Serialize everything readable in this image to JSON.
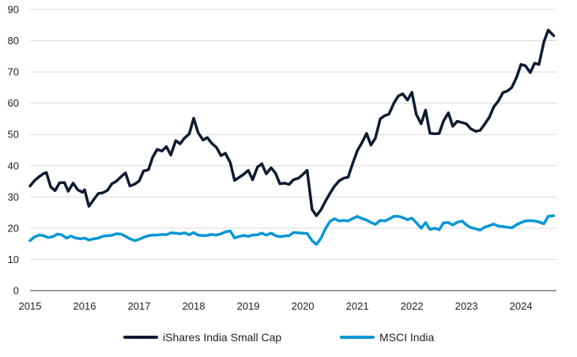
{
  "chart_data": {
    "type": "line",
    "title": "",
    "xlabel": "",
    "ylabel": "",
    "xlim": [
      2015,
      2024.65
    ],
    "ylim": [
      0,
      90
    ],
    "yticks": [
      0,
      10,
      20,
      30,
      40,
      50,
      60,
      70,
      80,
      90
    ],
    "xticks": [
      "2015",
      "2016",
      "2017",
      "2018",
      "2019",
      "2020",
      "2021",
      "2022",
      "2023",
      "2024"
    ],
    "grid": "horizontal",
    "legend": "bottom",
    "series": [
      {
        "name": "iShares India Small Cap",
        "color": "#0d1b33",
        "points": [
          [
            2015.0,
            33.5
          ],
          [
            2015.08,
            35.2
          ],
          [
            2015.17,
            36.5
          ],
          [
            2015.25,
            37.5
          ],
          [
            2015.3,
            37.8
          ],
          [
            2015.38,
            33.2
          ],
          [
            2015.46,
            32.0
          ],
          [
            2015.54,
            34.5
          ],
          [
            2015.63,
            34.6
          ],
          [
            2015.7,
            31.8
          ],
          [
            2015.79,
            34.4
          ],
          [
            2015.88,
            32.2
          ],
          [
            2015.96,
            31.5
          ],
          [
            2016.0,
            32.3
          ],
          [
            2016.08,
            27.0
          ],
          [
            2016.17,
            29.2
          ],
          [
            2016.25,
            31.1
          ],
          [
            2016.33,
            31.3
          ],
          [
            2016.42,
            32.1
          ],
          [
            2016.5,
            34.2
          ],
          [
            2016.58,
            35.0
          ],
          [
            2016.67,
            36.5
          ],
          [
            2016.75,
            37.7
          ],
          [
            2016.83,
            33.5
          ],
          [
            2016.92,
            34.1
          ],
          [
            2017.0,
            35.1
          ],
          [
            2017.08,
            38.3
          ],
          [
            2017.17,
            38.7
          ],
          [
            2017.25,
            42.8
          ],
          [
            2017.33,
            45.2
          ],
          [
            2017.42,
            44.7
          ],
          [
            2017.5,
            46.1
          ],
          [
            2017.58,
            43.4
          ],
          [
            2017.67,
            48.0
          ],
          [
            2017.75,
            47.0
          ],
          [
            2017.83,
            48.8
          ],
          [
            2017.92,
            50.2
          ],
          [
            2018.0,
            55.2
          ],
          [
            2018.08,
            50.6
          ],
          [
            2018.17,
            48.2
          ],
          [
            2018.25,
            49.0
          ],
          [
            2018.33,
            47.2
          ],
          [
            2018.42,
            45.8
          ],
          [
            2018.5,
            43.2
          ],
          [
            2018.58,
            44.0
          ],
          [
            2018.67,
            41.0
          ],
          [
            2018.75,
            35.3
          ],
          [
            2018.83,
            36.2
          ],
          [
            2018.92,
            37.3
          ],
          [
            2019.0,
            38.5
          ],
          [
            2019.08,
            35.5
          ],
          [
            2019.17,
            39.6
          ],
          [
            2019.25,
            40.6
          ],
          [
            2019.33,
            37.4
          ],
          [
            2019.42,
            39.3
          ],
          [
            2019.5,
            37.6
          ],
          [
            2019.58,
            34.2
          ],
          [
            2019.67,
            34.4
          ],
          [
            2019.75,
            34.0
          ],
          [
            2019.83,
            35.5
          ],
          [
            2019.92,
            36.0
          ],
          [
            2020.0,
            37.2
          ],
          [
            2020.08,
            38.5
          ],
          [
            2020.17,
            26.0
          ],
          [
            2020.25,
            24.0
          ],
          [
            2020.33,
            25.8
          ],
          [
            2020.42,
            28.8
          ],
          [
            2020.5,
            31.2
          ],
          [
            2020.58,
            33.4
          ],
          [
            2020.67,
            35.2
          ],
          [
            2020.75,
            36.0
          ],
          [
            2020.83,
            36.3
          ],
          [
            2020.92,
            41.0
          ],
          [
            2021.0,
            44.8
          ],
          [
            2021.08,
            47.2
          ],
          [
            2021.17,
            50.3
          ],
          [
            2021.25,
            46.6
          ],
          [
            2021.33,
            48.8
          ],
          [
            2021.42,
            55.0
          ],
          [
            2021.5,
            56.0
          ],
          [
            2021.58,
            56.5
          ],
          [
            2021.67,
            60.0
          ],
          [
            2021.75,
            62.3
          ],
          [
            2021.83,
            63.0
          ],
          [
            2021.92,
            61.0
          ],
          [
            2022.0,
            63.5
          ],
          [
            2022.08,
            56.5
          ],
          [
            2022.17,
            53.4
          ],
          [
            2022.25,
            57.8
          ],
          [
            2022.33,
            50.4
          ],
          [
            2022.42,
            50.2
          ],
          [
            2022.5,
            50.3
          ],
          [
            2022.58,
            54.3
          ],
          [
            2022.67,
            56.9
          ],
          [
            2022.75,
            52.6
          ],
          [
            2022.83,
            54.2
          ],
          [
            2022.92,
            53.8
          ],
          [
            2023.0,
            53.4
          ],
          [
            2023.08,
            51.8
          ],
          [
            2023.17,
            51.0
          ],
          [
            2023.25,
            51.3
          ],
          [
            2023.33,
            53.2
          ],
          [
            2023.42,
            55.5
          ],
          [
            2023.5,
            58.8
          ],
          [
            2023.58,
            60.6
          ],
          [
            2023.67,
            63.4
          ],
          [
            2023.75,
            63.9
          ],
          [
            2023.83,
            65.0
          ],
          [
            2023.92,
            68.3
          ],
          [
            2024.0,
            72.4
          ],
          [
            2024.08,
            72.0
          ],
          [
            2024.17,
            69.8
          ],
          [
            2024.25,
            72.8
          ],
          [
            2024.33,
            72.4
          ],
          [
            2024.42,
            79.6
          ],
          [
            2024.5,
            83.4
          ],
          [
            2024.6,
            81.6
          ]
        ]
      },
      {
        "name": "MSCI India",
        "color": "#0796d8",
        "points": [
          [
            2015.0,
            16.0
          ],
          [
            2015.08,
            17.2
          ],
          [
            2015.17,
            17.8
          ],
          [
            2015.25,
            17.6
          ],
          [
            2015.33,
            17.0
          ],
          [
            2015.42,
            17.3
          ],
          [
            2015.5,
            18.1
          ],
          [
            2015.58,
            17.9
          ],
          [
            2015.67,
            16.8
          ],
          [
            2015.75,
            17.5
          ],
          [
            2015.83,
            16.9
          ],
          [
            2015.92,
            16.6
          ],
          [
            2016.0,
            16.8
          ],
          [
            2016.08,
            16.2
          ],
          [
            2016.17,
            16.6
          ],
          [
            2016.25,
            16.8
          ],
          [
            2016.33,
            17.4
          ],
          [
            2016.42,
            17.6
          ],
          [
            2016.5,
            17.7
          ],
          [
            2016.58,
            18.2
          ],
          [
            2016.67,
            18.1
          ],
          [
            2016.75,
            17.4
          ],
          [
            2016.83,
            16.6
          ],
          [
            2016.92,
            16.0
          ],
          [
            2017.0,
            16.4
          ],
          [
            2017.08,
            17.1
          ],
          [
            2017.17,
            17.6
          ],
          [
            2017.25,
            17.8
          ],
          [
            2017.33,
            17.8
          ],
          [
            2017.42,
            18.0
          ],
          [
            2017.5,
            17.9
          ],
          [
            2017.58,
            18.5
          ],
          [
            2017.67,
            18.4
          ],
          [
            2017.75,
            18.2
          ],
          [
            2017.83,
            18.5
          ],
          [
            2017.92,
            17.9
          ],
          [
            2018.0,
            18.6
          ],
          [
            2018.08,
            17.8
          ],
          [
            2018.17,
            17.6
          ],
          [
            2018.25,
            17.7
          ],
          [
            2018.33,
            18.0
          ],
          [
            2018.42,
            17.8
          ],
          [
            2018.5,
            18.2
          ],
          [
            2018.58,
            18.8
          ],
          [
            2018.67,
            19.1
          ],
          [
            2018.75,
            16.9
          ],
          [
            2018.83,
            17.3
          ],
          [
            2018.92,
            17.7
          ],
          [
            2019.0,
            17.4
          ],
          [
            2019.08,
            17.8
          ],
          [
            2019.17,
            17.9
          ],
          [
            2019.25,
            18.4
          ],
          [
            2019.33,
            17.8
          ],
          [
            2019.42,
            18.4
          ],
          [
            2019.5,
            17.6
          ],
          [
            2019.58,
            17.3
          ],
          [
            2019.67,
            17.5
          ],
          [
            2019.75,
            17.6
          ],
          [
            2019.83,
            18.6
          ],
          [
            2019.92,
            18.5
          ],
          [
            2020.0,
            18.4
          ],
          [
            2020.08,
            18.3
          ],
          [
            2020.17,
            16.0
          ],
          [
            2020.25,
            14.8
          ],
          [
            2020.33,
            16.7
          ],
          [
            2020.42,
            20.0
          ],
          [
            2020.5,
            22.2
          ],
          [
            2020.58,
            23.0
          ],
          [
            2020.67,
            22.3
          ],
          [
            2020.75,
            22.5
          ],
          [
            2020.83,
            22.3
          ],
          [
            2020.92,
            23.1
          ],
          [
            2021.0,
            23.8
          ],
          [
            2021.08,
            23.1
          ],
          [
            2021.17,
            22.6
          ],
          [
            2021.25,
            21.8
          ],
          [
            2021.33,
            21.2
          ],
          [
            2021.42,
            22.5
          ],
          [
            2021.5,
            22.3
          ],
          [
            2021.58,
            22.9
          ],
          [
            2021.67,
            23.8
          ],
          [
            2021.75,
            23.8
          ],
          [
            2021.83,
            23.4
          ],
          [
            2021.92,
            22.7
          ],
          [
            2022.0,
            23.2
          ],
          [
            2022.08,
            21.8
          ],
          [
            2022.17,
            20.0
          ],
          [
            2022.25,
            21.8
          ],
          [
            2022.33,
            19.6
          ],
          [
            2022.42,
            20.0
          ],
          [
            2022.5,
            19.5
          ],
          [
            2022.58,
            21.7
          ],
          [
            2022.67,
            21.8
          ],
          [
            2022.75,
            21.0
          ],
          [
            2022.83,
            21.9
          ],
          [
            2022.92,
            22.3
          ],
          [
            2023.0,
            21.0
          ],
          [
            2023.08,
            20.2
          ],
          [
            2023.17,
            19.8
          ],
          [
            2023.25,
            19.4
          ],
          [
            2023.33,
            20.3
          ],
          [
            2023.42,
            20.8
          ],
          [
            2023.5,
            21.3
          ],
          [
            2023.58,
            20.7
          ],
          [
            2023.67,
            20.5
          ],
          [
            2023.75,
            20.3
          ],
          [
            2023.83,
            20.1
          ],
          [
            2023.92,
            21.1
          ],
          [
            2024.0,
            21.8
          ],
          [
            2024.08,
            22.3
          ],
          [
            2024.17,
            22.4
          ],
          [
            2024.25,
            22.3
          ],
          [
            2024.33,
            22.0
          ],
          [
            2024.42,
            21.4
          ],
          [
            2024.5,
            23.8
          ],
          [
            2024.6,
            24.0
          ]
        ]
      }
    ]
  }
}
